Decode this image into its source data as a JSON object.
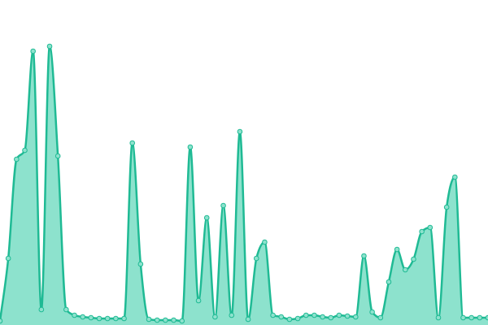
{
  "chart_data": {
    "type": "area",
    "values": [
      5,
      82,
      204,
      215,
      337,
      19,
      343,
      208,
      19,
      12,
      10,
      9,
      8,
      8,
      8,
      8,
      224,
      75,
      7,
      6,
      6,
      6,
      5,
      219,
      30,
      132,
      10,
      147,
      12,
      238,
      7,
      82,
      102,
      12,
      10,
      7,
      8,
      12,
      12,
      10,
      9,
      12,
      11,
      10,
      85,
      16,
      9,
      53,
      93,
      68,
      81,
      115,
      120,
      9,
      145,
      182,
      9,
      9,
      9,
      9
    ],
    "ylim": [
      0,
      400
    ],
    "color": "#1fba94",
    "fill": "#8de2cd",
    "markers": true
  }
}
